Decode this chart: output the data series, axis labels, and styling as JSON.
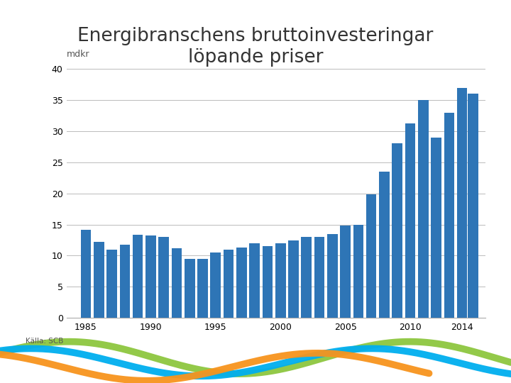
{
  "title": "Energibranschens bruttoinvesteringar\nlöpande priser",
  "ylabel": "mdkr",
  "source": "Källa: SCB",
  "bar_color": "#2E75B6",
  "all_years": [
    1985,
    1986,
    1987,
    1988,
    1989,
    1990,
    1991,
    1992,
    1993,
    1994,
    1995,
    1996,
    1997,
    1998,
    1999,
    2000,
    2001,
    2002,
    2003,
    2004,
    2005,
    2006,
    2007,
    2008,
    2009,
    2010,
    2011,
    2012,
    2013,
    2014
  ],
  "all_values": [
    14.2,
    12.2,
    11.0,
    11.8,
    13.4,
    13.2,
    13.0,
    11.2,
    9.5,
    9.5,
    10.5,
    11.0,
    11.3,
    12.0,
    11.5,
    12.0,
    12.5,
    13.0,
    13.0,
    13.5,
    14.8,
    15.0,
    19.8,
    23.5,
    28.0,
    31.2,
    35.0,
    29.0,
    33.0,
    37.0
  ],
  "extra_year": 2014.85,
  "extra_value": 36.0,
  "xlim_left": 1983.5,
  "xlim_right": 2015.8,
  "ylim": [
    0,
    40
  ],
  "yticks": [
    0,
    5,
    10,
    15,
    20,
    25,
    30,
    35,
    40
  ],
  "xticks": [
    1985,
    1990,
    1995,
    2000,
    2005,
    2010,
    2014
  ],
  "grid_color": "#BBBBBB",
  "background_color": "#FFFFFF",
  "title_fontsize": 19,
  "label_fontsize": 9,
  "tick_fontsize": 9,
  "bar_width": 0.8,
  "green_color": "#8DC63F",
  "blue_color": "#00AEEF",
  "gold_color": "#F7941D"
}
